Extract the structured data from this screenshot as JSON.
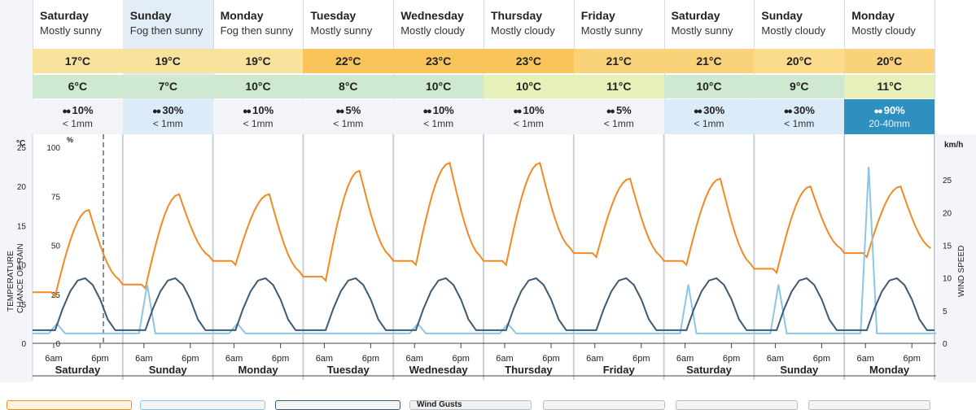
{
  "days": [
    {
      "name": "Saturday",
      "summary": "Mostly sunny",
      "max": "17°C",
      "min": "6°C",
      "rain_chance": "10%",
      "rain_amount": "< 1mm",
      "max_color": "#f7e39b",
      "min_color": "#cfe9d1",
      "rain_level": "low"
    },
    {
      "name": "Sunday",
      "summary": "Fog then sunny",
      "max": "19°C",
      "min": "7°C",
      "rain_chance": "30%",
      "rain_amount": "< 1mm",
      "max_color": "#f7e39b",
      "min_color": "#cfe9d1",
      "rain_level": "hi"
    },
    {
      "name": "Monday",
      "summary": "Fog then sunny",
      "max": "19°C",
      "min": "10°C",
      "rain_chance": "10%",
      "rain_amount": "< 1mm",
      "max_color": "#f7e39b",
      "min_color": "#cfe9d1",
      "rain_level": "low"
    },
    {
      "name": "Tuesday",
      "summary": "Mostly sunny",
      "max": "22°C",
      "min": "8°C",
      "rain_chance": "5%",
      "rain_amount": "< 1mm",
      "max_color": "#f9c45a",
      "min_color": "#cfe9d1",
      "rain_level": "low"
    },
    {
      "name": "Wednesday",
      "summary": "Mostly cloudy",
      "max": "23°C",
      "min": "10°C",
      "rain_chance": "10%",
      "rain_amount": "< 1mm",
      "max_color": "#f9c45a",
      "min_color": "#cfe9d1",
      "rain_level": "low"
    },
    {
      "name": "Thursday",
      "summary": "Mostly cloudy",
      "max": "23°C",
      "min": "10°C",
      "rain_chance": "10%",
      "rain_amount": "< 1mm",
      "max_color": "#f9c45a",
      "min_color": "#e6f0b8",
      "rain_level": "low"
    },
    {
      "name": "Friday",
      "summary": "Mostly sunny",
      "max": "21°C",
      "min": "11°C",
      "rain_chance": "5%",
      "rain_amount": "< 1mm",
      "max_color": "#fad27a",
      "min_color": "#e6f0b8",
      "rain_level": "low"
    },
    {
      "name": "Saturday",
      "summary": "Mostly sunny",
      "max": "21°C",
      "min": "10°C",
      "rain_chance": "30%",
      "rain_amount": "< 1mm",
      "max_color": "#fad27a",
      "min_color": "#cfe9d1",
      "rain_level": "hi"
    },
    {
      "name": "Sunday",
      "summary": "Mostly cloudy",
      "max": "20°C",
      "min": "9°C",
      "rain_chance": "30%",
      "rain_amount": "< 1mm",
      "max_color": "#fbdb8c",
      "min_color": "#cfe9d1",
      "rain_level": "hi"
    },
    {
      "name": "Monday",
      "summary": "Mostly cloudy",
      "max": "20°C",
      "min": "11°C",
      "rain_chance": "90%",
      "rain_amount": "20-40mm",
      "max_color": "#fad27a",
      "min_color": "#e6f0b8",
      "rain_level": "heavy"
    }
  ],
  "chart": {
    "temp_unit": "°C",
    "temp_title": "TEMPERATURE",
    "rain_title": "CHANCE OF RAIN",
    "rain_unit": "%",
    "wind_unit": "km/h",
    "wind_title": "WIND SPEED",
    "temp_ticks": [
      "25",
      "20",
      "15",
      "10",
      "5",
      "0"
    ],
    "rain_ticks": [
      "100",
      "75",
      "50",
      "25",
      "0"
    ],
    "wind_ticks": [
      "25",
      "20",
      "15",
      "10",
      "5",
      "0"
    ],
    "time_labels": [
      "6am",
      "6pm"
    ],
    "temp_color": "#f08a24",
    "wind_color": "#3c5a73",
    "rain_color": "#8cc6e6"
  },
  "controls": {
    "wind_gusts_label": "Wind Gusts"
  }
}
